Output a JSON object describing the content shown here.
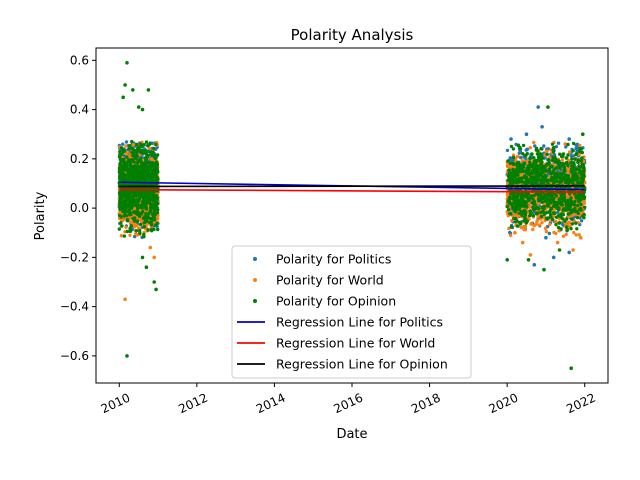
{
  "chart_data": {
    "type": "scatter",
    "title": "Polarity Analysis",
    "xlabel": "Date",
    "ylabel": "Polarity",
    "xlim": [
      2009.4,
      2022.6
    ],
    "ylim": [
      -0.71,
      0.65
    ],
    "x_ticks": [
      2010,
      2012,
      2014,
      2016,
      2018,
      2020,
      2022
    ],
    "x_tick_labels": [
      "2010",
      "2012",
      "2014",
      "2016",
      "2018",
      "2020",
      "2022"
    ],
    "y_ticks": [
      -0.6,
      -0.4,
      -0.2,
      0.0,
      0.2,
      0.4,
      0.6
    ],
    "y_tick_labels": [
      "−0.6",
      "−0.4",
      "−0.2",
      "0.0",
      "0.2",
      "0.4",
      "0.6"
    ],
    "grid": false,
    "legend_position": "lower-center",
    "clusters": [
      {
        "x_range": [
          2010.0,
          2011.0
        ]
      },
      {
        "x_range": [
          2020.0,
          2022.0
        ]
      }
    ],
    "series": [
      {
        "name": "Polarity for Politics",
        "kind": "scatter",
        "color": "#1f77b4",
        "points": [
          [
            2020.8,
            0.41
          ],
          [
            2020.9,
            0.33
          ],
          [
            2021.6,
            0.28
          ],
          [
            2020.5,
            0.3
          ],
          [
            2020.7,
            -0.23
          ],
          [
            2021.2,
            -0.2
          ],
          [
            2021.6,
            -0.18
          ],
          [
            2020.1,
            0.28
          ],
          [
            2021.8,
            0.25
          ],
          [
            2021.0,
            -0.12
          ]
        ]
      },
      {
        "name": "Polarity for World",
        "kind": "scatter",
        "color": "#ff7f0e",
        "points": [
          [
            2010.15,
            -0.37
          ],
          [
            2010.9,
            -0.2
          ],
          [
            2010.8,
            -0.16
          ],
          [
            2020.4,
            -0.14
          ],
          [
            2021.3,
            -0.14
          ],
          [
            2021.9,
            -0.12
          ],
          [
            2020.2,
            -0.1
          ],
          [
            2021.7,
            -0.17
          ],
          [
            2020.6,
            -0.19
          ],
          [
            2021.5,
            0.26
          ]
        ]
      },
      {
        "name": "Polarity for Opinion",
        "kind": "scatter",
        "color": "#008000",
        "points": [
          [
            2010.2,
            0.59
          ],
          [
            2010.15,
            0.5
          ],
          [
            2010.35,
            0.48
          ],
          [
            2010.75,
            0.48
          ],
          [
            2010.1,
            0.45
          ],
          [
            2010.5,
            0.41
          ],
          [
            2010.6,
            0.4
          ],
          [
            2010.2,
            -0.6
          ],
          [
            2010.95,
            -0.33
          ],
          [
            2010.9,
            -0.3
          ],
          [
            2010.7,
            -0.24
          ],
          [
            2010.6,
            -0.2
          ],
          [
            2021.05,
            0.41
          ],
          [
            2021.95,
            0.3
          ],
          [
            2020.0,
            -0.21
          ],
          [
            2020.95,
            -0.25
          ],
          [
            2020.55,
            -0.21
          ],
          [
            2021.65,
            -0.65
          ],
          [
            2021.35,
            -0.17
          ]
        ]
      },
      {
        "name": "Regression Line for Politics",
        "kind": "line",
        "color": "#0000cc",
        "points": [
          [
            2010.0,
            0.105
          ],
          [
            2022.0,
            0.075
          ]
        ]
      },
      {
        "name": "Regression Line for World",
        "kind": "line",
        "color": "#ff0000",
        "points": [
          [
            2010.0,
            0.075
          ],
          [
            2022.0,
            0.065
          ]
        ]
      },
      {
        "name": "Regression Line for Opinion",
        "kind": "line",
        "color": "#000000",
        "points": [
          [
            2010.0,
            0.088
          ],
          [
            2022.0,
            0.09
          ]
        ]
      }
    ]
  }
}
